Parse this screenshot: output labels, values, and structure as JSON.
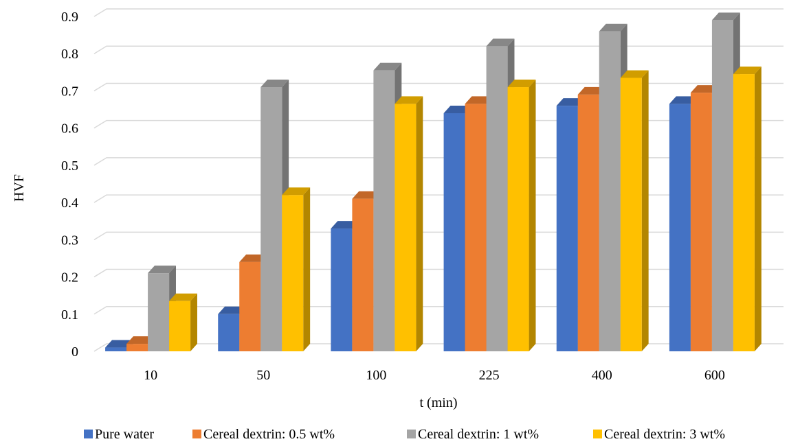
{
  "chart_data": {
    "type": "bar",
    "title": "",
    "xlabel": "t (min)",
    "ylabel": "HVF",
    "ylim": [
      0,
      0.9
    ],
    "yticks": [
      "0",
      "0.1",
      "0.2",
      "0.3",
      "0.4",
      "0.5",
      "0.6",
      "0.7",
      "0.8",
      "0.9"
    ],
    "categories": [
      "10",
      "50",
      "100",
      "225",
      "400",
      "600"
    ],
    "grid": true,
    "legend_position": "bottom",
    "series": [
      {
        "name": "Pure water",
        "color": "#4472C4",
        "values": [
          0.01,
          0.1,
          0.33,
          0.64,
          0.66,
          0.665
        ]
      },
      {
        "name": "Cereal dextrin: 0.5 wt%",
        "color": "#ED7D31",
        "values": [
          0.02,
          0.24,
          0.41,
          0.665,
          0.69,
          0.695
        ]
      },
      {
        "name": "Cereal dextrin: 1 wt%",
        "color": "#A5A5A5",
        "values": [
          0.21,
          0.71,
          0.755,
          0.82,
          0.86,
          0.89
        ]
      },
      {
        "name": "Cereal dextrin: 3 wt%",
        "color": "#FFC000",
        "values": [
          0.135,
          0.42,
          0.665,
          0.71,
          0.735,
          0.745
        ]
      }
    ]
  }
}
